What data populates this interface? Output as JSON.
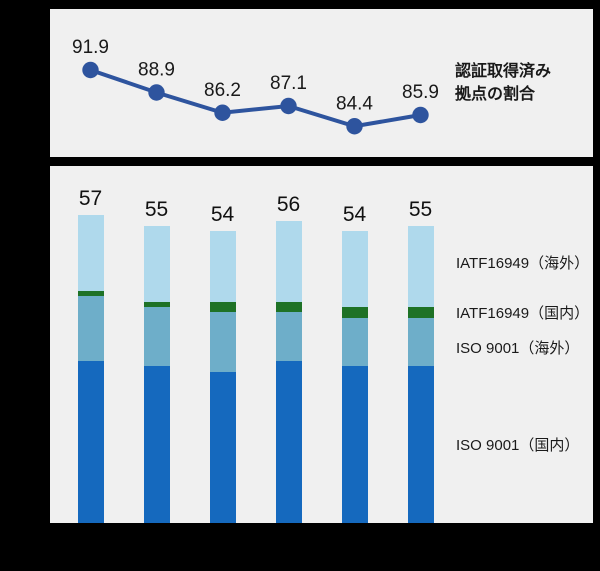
{
  "page": {
    "background_color": "#000000",
    "panel_background_color": "#f0f0f0"
  },
  "line_panel": {
    "annotation_lines": [
      "認証取得済み",
      "拠点の割合"
    ]
  },
  "legend": [
    "IATF16949（海外）",
    "IATF16949（国内）",
    "ISO 9001（海外）",
    "ISO 9001（国内）"
  ],
  "chart_data": [
    {
      "type": "line",
      "title": "",
      "values": [
        91.9,
        88.9,
        86.2,
        87.1,
        84.4,
        85.9
      ],
      "data_labels": [
        "91.9",
        "88.9",
        "86.2",
        "87.1",
        "84.4",
        "85.9"
      ],
      "x_tick_labels": [],
      "annotation": "認証取得済み拠点の割合",
      "line_color": "#2e549e",
      "marker": "circle",
      "marker_color": "#2e549e",
      "grid": false,
      "axes_visible": false,
      "legend_position": "right"
    },
    {
      "type": "bar",
      "stacked": true,
      "title": "",
      "totals": [
        57,
        55,
        54,
        56,
        54,
        55
      ],
      "x_tick_labels": [],
      "series_order": "bottom-to-top",
      "series": [
        {
          "name": "ISO 9001（国内）",
          "color": "#1569be",
          "values": [
            30,
            29,
            28,
            30,
            29,
            29
          ]
        },
        {
          "name": "ISO 9001（海外）",
          "color": "#6eaec9",
          "values": [
            12,
            11,
            11,
            9,
            9,
            9
          ]
        },
        {
          "name": "IATF16949（国内）",
          "color": "#1e7226",
          "values": [
            1,
            1,
            2,
            2,
            2,
            2
          ]
        },
        {
          "name": "IATF16949（海外）",
          "color": "#afd9ec",
          "values": [
            14,
            14,
            13,
            15,
            14,
            15
          ]
        }
      ],
      "grid": false,
      "axes_visible": false,
      "legend_position": "right"
    }
  ]
}
